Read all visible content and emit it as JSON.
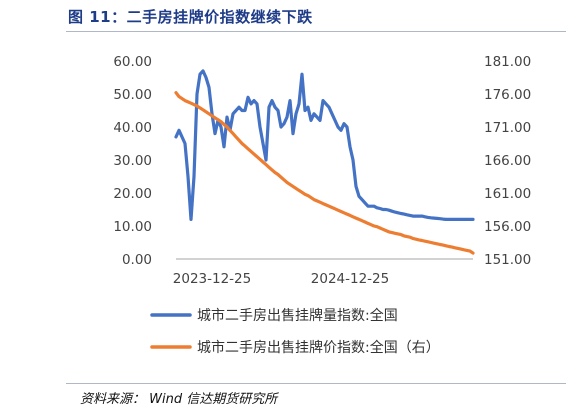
{
  "header": {
    "title": "图 11：二手房挂牌价指数继续下跌"
  },
  "footer": {
    "source": "资料来源：   Wind  信达期货研究所"
  },
  "chart_data": {
    "type": "line",
    "title": "",
    "xlabel": "",
    "ylabel": "",
    "x_tick_labels": [
      "2023-12-25",
      "2024-12-25"
    ],
    "y_left": {
      "ylim": [
        0,
        60
      ],
      "ticks": [
        "0.00",
        "10.00",
        "20.00",
        "30.00",
        "40.00",
        "50.00",
        "60.00"
      ]
    },
    "y_right": {
      "ylim": [
        151,
        181
      ],
      "ticks": [
        "151.00",
        "156.00",
        "161.00",
        "166.00",
        "171.00",
        "176.00",
        "181.00"
      ]
    },
    "grid": false,
    "legend_position": "bottom",
    "x": [
      0,
      1,
      2,
      3,
      4,
      5,
      6,
      7,
      8,
      9,
      10,
      11,
      12,
      13,
      14,
      15,
      16,
      17,
      18,
      19,
      20,
      21,
      22,
      23,
      24,
      25,
      26,
      27,
      28,
      29,
      30,
      31,
      32,
      33,
      34,
      35,
      36,
      37,
      38,
      39,
      40,
      41,
      42,
      43,
      44,
      45,
      46,
      47,
      48,
      49,
      50,
      51,
      52,
      53,
      54,
      55,
      56,
      57,
      58,
      59,
      60,
      61,
      62,
      63,
      64,
      65,
      66,
      67,
      68,
      69,
      70,
      71,
      72,
      73,
      74,
      75,
      76,
      77,
      78,
      79,
      80,
      81,
      82,
      83,
      84,
      85,
      86,
      87,
      88,
      89,
      90,
      91,
      92,
      93,
      94,
      95,
      96,
      97,
      98,
      99
    ],
    "series": [
      {
        "name": "城市二手房出售挂牌量指数:全国",
        "axis": "left",
        "color": "#4472c4",
        "values": [
          37,
          39,
          37,
          35,
          25,
          12,
          25,
          50,
          56,
          57,
          55,
          52,
          44,
          38,
          42,
          40,
          34,
          43,
          39,
          44,
          45,
          46,
          45,
          45,
          49,
          47,
          48,
          47,
          40,
          35,
          30,
          46,
          48,
          46,
          45,
          40,
          41,
          43,
          48,
          38,
          44,
          47,
          56,
          45,
          46,
          42,
          44,
          43,
          42,
          48,
          47,
          46,
          44,
          42,
          40,
          39,
          41,
          40,
          34,
          30,
          22,
          19,
          18,
          17,
          16,
          16,
          16,
          15.5,
          15.3,
          15,
          15,
          14.8,
          14.5,
          14.2,
          14,
          13.8,
          13.6,
          13.4,
          13.2,
          13,
          13,
          13,
          13,
          12.8,
          12.6,
          12.5,
          12.4,
          12.3,
          12.2,
          12.1,
          12,
          12,
          12,
          12,
          12,
          12,
          12,
          12,
          12,
          12
        ],
        "note": "left axis"
      },
      {
        "name": "城市二手房出售挂牌价指数:全国（右）",
        "axis": "right",
        "color": "#ed7d31",
        "values": [
          176.2,
          175.6,
          175.3,
          175.0,
          174.8,
          174.6,
          174.4,
          174.2,
          173.9,
          173.6,
          173.3,
          173.0,
          172.7,
          172.4,
          172.1,
          171.8,
          171.4,
          171.0,
          170.5,
          170.0,
          169.5,
          169.0,
          168.5,
          168.1,
          167.7,
          167.3,
          166.9,
          166.5,
          166.1,
          165.7,
          165.3,
          164.9,
          164.5,
          164.1,
          163.8,
          163.4,
          163.0,
          162.6,
          162.3,
          162.0,
          161.7,
          161.4,
          161.1,
          160.8,
          160.6,
          160.3,
          160.0,
          159.8,
          159.6,
          159.4,
          159.2,
          159.0,
          158.8,
          158.6,
          158.4,
          158.2,
          158.0,
          157.8,
          157.6,
          157.4,
          157.2,
          157.0,
          156.8,
          156.6,
          156.4,
          156.2,
          156.0,
          155.9,
          155.7,
          155.5,
          155.3,
          155.1,
          155.0,
          154.9,
          154.8,
          154.7,
          154.5,
          154.4,
          154.3,
          154.1,
          154.0,
          153.9,
          153.8,
          153.7,
          153.6,
          153.5,
          153.4,
          153.3,
          153.2,
          153.1,
          153.0,
          152.9,
          152.8,
          152.7,
          152.6,
          152.5,
          152.4,
          152.3,
          152.2,
          151.9
        ]
      }
    ]
  }
}
